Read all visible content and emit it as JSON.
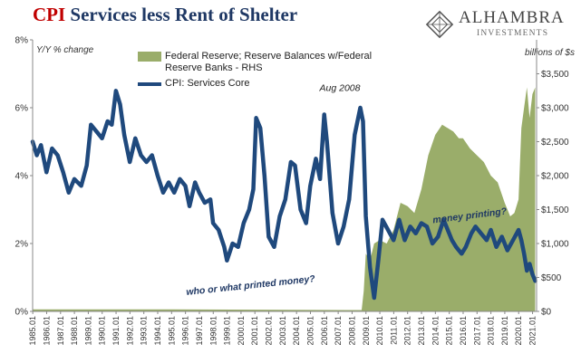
{
  "title_prefix": "CPI",
  "title_rest": "Services less Rent of Shelter",
  "brand": {
    "name": "ALHAMBRA",
    "tagline": "INVESTMENTS"
  },
  "chart_data": {
    "type": "line",
    "title": "CPI Services less Rent of Shelter",
    "ylabel": "Y/Y % change",
    "y2label": "billions of $s",
    "ylim": [
      0,
      8
    ],
    "y2lim": [
      0,
      4000
    ],
    "yticks": [
      "0%",
      "2%",
      "4%",
      "6%",
      "8%"
    ],
    "y2ticks": [
      "$0",
      "$500",
      "$1,000",
      "$1,500",
      "$2,000",
      "$2,500",
      "$3,000",
      "$3,500"
    ],
    "xticks": [
      "1985.01",
      "1986.01",
      "1987.01",
      "1988.01",
      "1989.01",
      "1990.01",
      "1991.01",
      "1992.01",
      "1993.01",
      "1994.01",
      "1995.01",
      "1996.01",
      "1997.01",
      "1998.01",
      "1999.01",
      "2000.01",
      "2001.01",
      "2002.01",
      "2003.01",
      "2004.01",
      "2005.01",
      "2006.01",
      "2007.01",
      "2008.01",
      "2009.01",
      "2010.01",
      "2011.01",
      "2012.01",
      "2013.01",
      "2014.01",
      "2015.01",
      "2016.01",
      "2017.01",
      "2018.01",
      "2019.01",
      "2020.01",
      "2021.01"
    ],
    "legend_placement": "top-left",
    "grid": false,
    "series": [
      {
        "name": "Federal Reserve; Reserve Balances w/Federal Reserve Banks - RHS",
        "type": "area",
        "axis": "right",
        "color": "#9aad6a",
        "x": [
          1985.0,
          1995.0,
          2008.7,
          2008.85,
          2009.0,
          2009.3,
          2009.6,
          2010.0,
          2010.5,
          2011.0,
          2011.5,
          2012.0,
          2012.5,
          2013.0,
          2013.5,
          2014.0,
          2014.5,
          2014.9,
          2015.3,
          2015.7,
          2016.0,
          2016.5,
          2017.0,
          2017.5,
          2018.0,
          2018.5,
          2019.0,
          2019.4,
          2019.7,
          2020.0,
          2020.2,
          2020.4,
          2020.6,
          2020.8,
          2021.0,
          2021.2
        ],
        "y": [
          30,
          30,
          20,
          300,
          850,
          750,
          1000,
          1050,
          1000,
          1200,
          1600,
          1550,
          1450,
          1800,
          2300,
          2600,
          2750,
          2700,
          2650,
          2550,
          2550,
          2400,
          2300,
          2200,
          2000,
          1900,
          1600,
          1400,
          1450,
          1650,
          2700,
          3000,
          3300,
          2850,
          3200,
          3300
        ]
      },
      {
        "name": "CPI: Services Core",
        "type": "line",
        "axis": "left",
        "color": "#1f497d",
        "x": [
          1985.0,
          1985.3,
          1985.6,
          1986.0,
          1986.4,
          1986.8,
          1987.2,
          1987.6,
          1988.0,
          1988.5,
          1988.9,
          1989.2,
          1989.6,
          1990.0,
          1990.4,
          1990.7,
          1991.0,
          1991.3,
          1991.6,
          1992.0,
          1992.4,
          1992.8,
          1993.2,
          1993.6,
          1994.0,
          1994.4,
          1994.8,
          1995.2,
          1995.6,
          1996.0,
          1996.3,
          1996.7,
          1997.0,
          1997.4,
          1997.8,
          1998.0,
          1998.4,
          1998.8,
          1999.0,
          1999.4,
          1999.8,
          2000.2,
          2000.6,
          2000.9,
          2001.1,
          2001.4,
          2001.7,
          2002.0,
          2002.4,
          2002.8,
          2003.2,
          2003.6,
          2003.9,
          2004.3,
          2004.7,
          2005.0,
          2005.4,
          2005.7,
          2006.0,
          2006.2,
          2006.6,
          2007.0,
          2007.4,
          2007.8,
          2008.2,
          2008.6,
          2008.8,
          2009.0,
          2009.3,
          2009.6,
          2009.9,
          2010.2,
          2010.6,
          2011.0,
          2011.4,
          2011.8,
          2012.2,
          2012.6,
          2013.0,
          2013.4,
          2013.8,
          2014.2,
          2014.6,
          2014.9,
          2015.2,
          2015.5,
          2015.9,
          2016.2,
          2016.6,
          2016.9,
          2017.3,
          2017.7,
          2018.0,
          2018.4,
          2018.8,
          2019.2,
          2019.6,
          2020.0,
          2020.2,
          2020.4,
          2020.6,
          2020.8,
          2021.0,
          2021.2
        ],
        "y": [
          5.0,
          4.6,
          4.9,
          4.1,
          4.8,
          4.6,
          4.1,
          3.5,
          3.9,
          3.7,
          4.3,
          5.5,
          5.3,
          5.1,
          5.6,
          5.5,
          6.5,
          6.1,
          5.2,
          4.4,
          5.1,
          4.6,
          4.4,
          4.6,
          4.0,
          3.5,
          3.8,
          3.5,
          3.9,
          3.7,
          3.1,
          3.8,
          3.5,
          3.2,
          3.3,
          2.6,
          2.4,
          1.9,
          1.5,
          2.0,
          1.9,
          2.6,
          3.0,
          3.6,
          5.7,
          5.4,
          4.0,
          2.2,
          1.9,
          2.8,
          3.3,
          4.4,
          4.3,
          3.0,
          2.6,
          3.7,
          4.5,
          3.9,
          5.8,
          5.0,
          2.9,
          2.0,
          2.5,
          3.3,
          5.2,
          6.0,
          5.6,
          2.8,
          1.3,
          0.4,
          1.5,
          2.7,
          2.4,
          2.1,
          2.7,
          2.1,
          2.5,
          2.3,
          2.6,
          2.5,
          2.0,
          2.2,
          2.7,
          2.4,
          2.1,
          1.9,
          1.7,
          1.9,
          2.3,
          2.5,
          2.3,
          2.1,
          2.4,
          1.9,
          2.2,
          1.8,
          2.1,
          2.4,
          2.1,
          1.7,
          1.2,
          1.4,
          1.1,
          0.9
        ]
      }
    ],
    "annotations": [
      {
        "text": "Aug 2008",
        "x": 2008.6,
        "y": 6.5
      },
      {
        "text": "money printing?",
        "x": 2015.8,
        "y": 2.6
      },
      {
        "text": "who or what printed money?",
        "x": 2000.0,
        "y": 0.8
      }
    ]
  }
}
